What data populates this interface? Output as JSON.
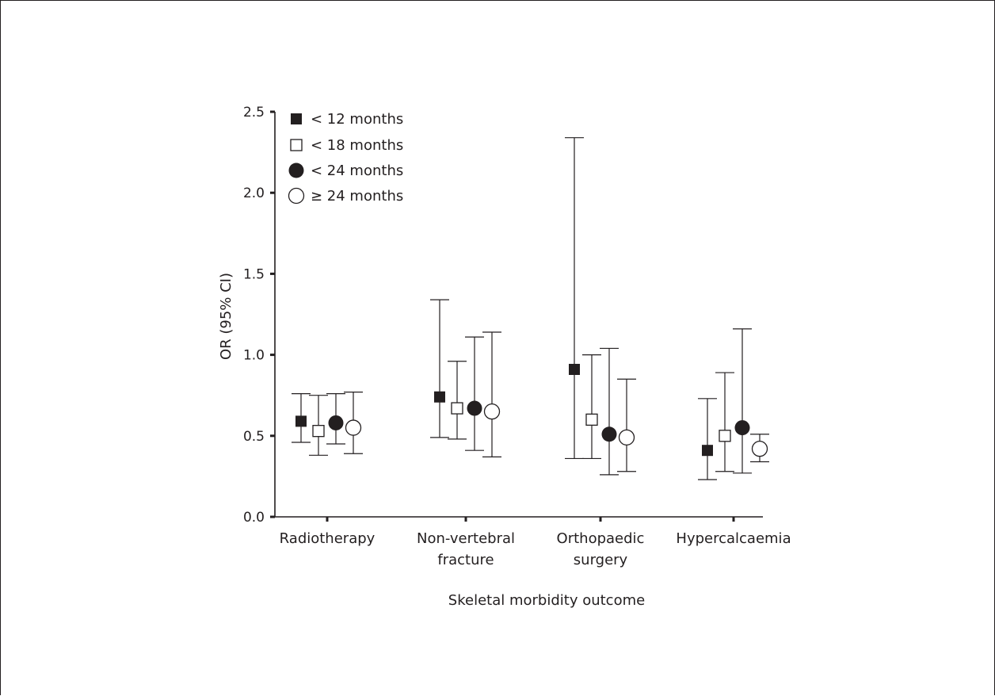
{
  "chart_data": {
    "type": "scatter",
    "subtype": "error-bar",
    "title": "",
    "xlabel": "Skeletal morbidity outcome",
    "ylabel": "OR (95% CI)",
    "ylim": [
      0,
      2.5
    ],
    "yticks": [
      "0.0",
      "0.5",
      "1.0",
      "1.5",
      "2.0",
      "2.5"
    ],
    "ytick_values": [
      0,
      0.5,
      1.0,
      1.5,
      2.0,
      2.5
    ],
    "categories": [
      [
        "Radiotherapy"
      ],
      [
        "Non-vertebral",
        "fracture"
      ],
      [
        "Orthopaedic",
        "surgery"
      ],
      [
        "Hypercalcaemia"
      ]
    ],
    "grid": false,
    "legend_position": "top-left",
    "series": [
      {
        "name": "< 12 months",
        "marker": "filled-square",
        "values": [
          0.59,
          0.74,
          0.91,
          0.41
        ],
        "lower": [
          0.46,
          0.49,
          0.36,
          0.23
        ],
        "upper": [
          0.76,
          1.34,
          2.34,
          0.73
        ]
      },
      {
        "name": "< 18 months",
        "marker": "open-square",
        "values": [
          0.53,
          0.67,
          0.6,
          0.5
        ],
        "lower": [
          0.38,
          0.48,
          0.36,
          0.28
        ],
        "upper": [
          0.75,
          0.96,
          1.0,
          0.89
        ]
      },
      {
        "name": "< 24 months",
        "marker": "filled-circle",
        "values": [
          0.58,
          0.67,
          0.51,
          0.55
        ],
        "lower": [
          0.45,
          0.41,
          0.26,
          0.27
        ],
        "upper": [
          0.76,
          1.11,
          1.04,
          1.16
        ]
      },
      {
        "name": "≥ 24 months",
        "marker": "open-circle",
        "values": [
          0.55,
          0.65,
          0.49,
          0.42
        ],
        "lower": [
          0.39,
          0.37,
          0.28,
          0.34
        ],
        "upper": [
          0.77,
          1.14,
          0.85,
          0.51
        ]
      }
    ],
    "colors": {
      "ink": "#231f20",
      "fill_open": "#ffffff"
    }
  }
}
